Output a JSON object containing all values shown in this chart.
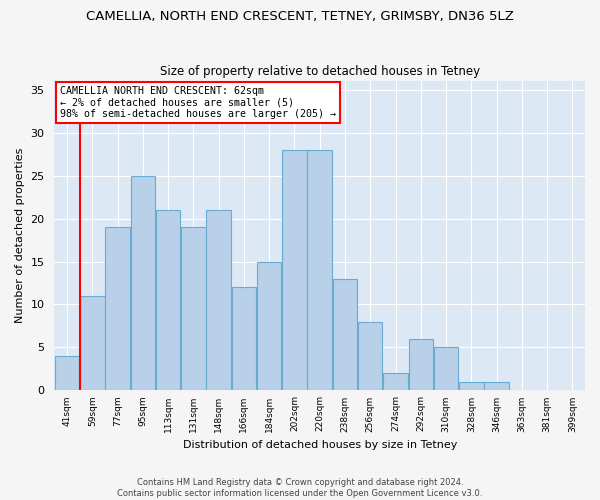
{
  "title1": "CAMELLIA, NORTH END CRESCENT, TETNEY, GRIMSBY, DN36 5LZ",
  "title2": "Size of property relative to detached houses in Tetney",
  "xlabel": "Distribution of detached houses by size in Tetney",
  "ylabel": "Number of detached properties",
  "footer1": "Contains HM Land Registry data © Crown copyright and database right 2024.",
  "footer2": "Contains public sector information licensed under the Open Government Licence v3.0.",
  "categories": [
    "41sqm",
    "59sqm",
    "77sqm",
    "95sqm",
    "113sqm",
    "131sqm",
    "148sqm",
    "166sqm",
    "184sqm",
    "202sqm",
    "220sqm",
    "238sqm",
    "256sqm",
    "274sqm",
    "292sqm",
    "310sqm",
    "328sqm",
    "346sqm",
    "363sqm",
    "381sqm",
    "399sqm"
  ],
  "values": [
    4,
    11,
    19,
    25,
    21,
    19,
    21,
    12,
    15,
    28,
    28,
    13,
    8,
    2,
    6,
    5,
    1,
    1,
    0,
    0,
    0
  ],
  "bar_color": "#b8d0e8",
  "bar_edge_color": "#6aabd2",
  "annotation_title": "CAMELLIA NORTH END CRESCENT: 62sqm",
  "annotation_line2": "← 2% of detached houses are smaller (5)",
  "annotation_line3": "98% of semi-detached houses are larger (205) →",
  "redline_bin_index": 1,
  "ylim": [
    0,
    36
  ],
  "yticks": [
    0,
    5,
    10,
    15,
    20,
    25,
    30,
    35
  ],
  "plot_bg": "#dce9f5",
  "fig_bg": "#f5f5f5",
  "grid_color": "#ffffff",
  "title1_fontsize": 9.5,
  "title2_fontsize": 8.5,
  "xlabel_fontsize": 8,
  "ylabel_fontsize": 8
}
